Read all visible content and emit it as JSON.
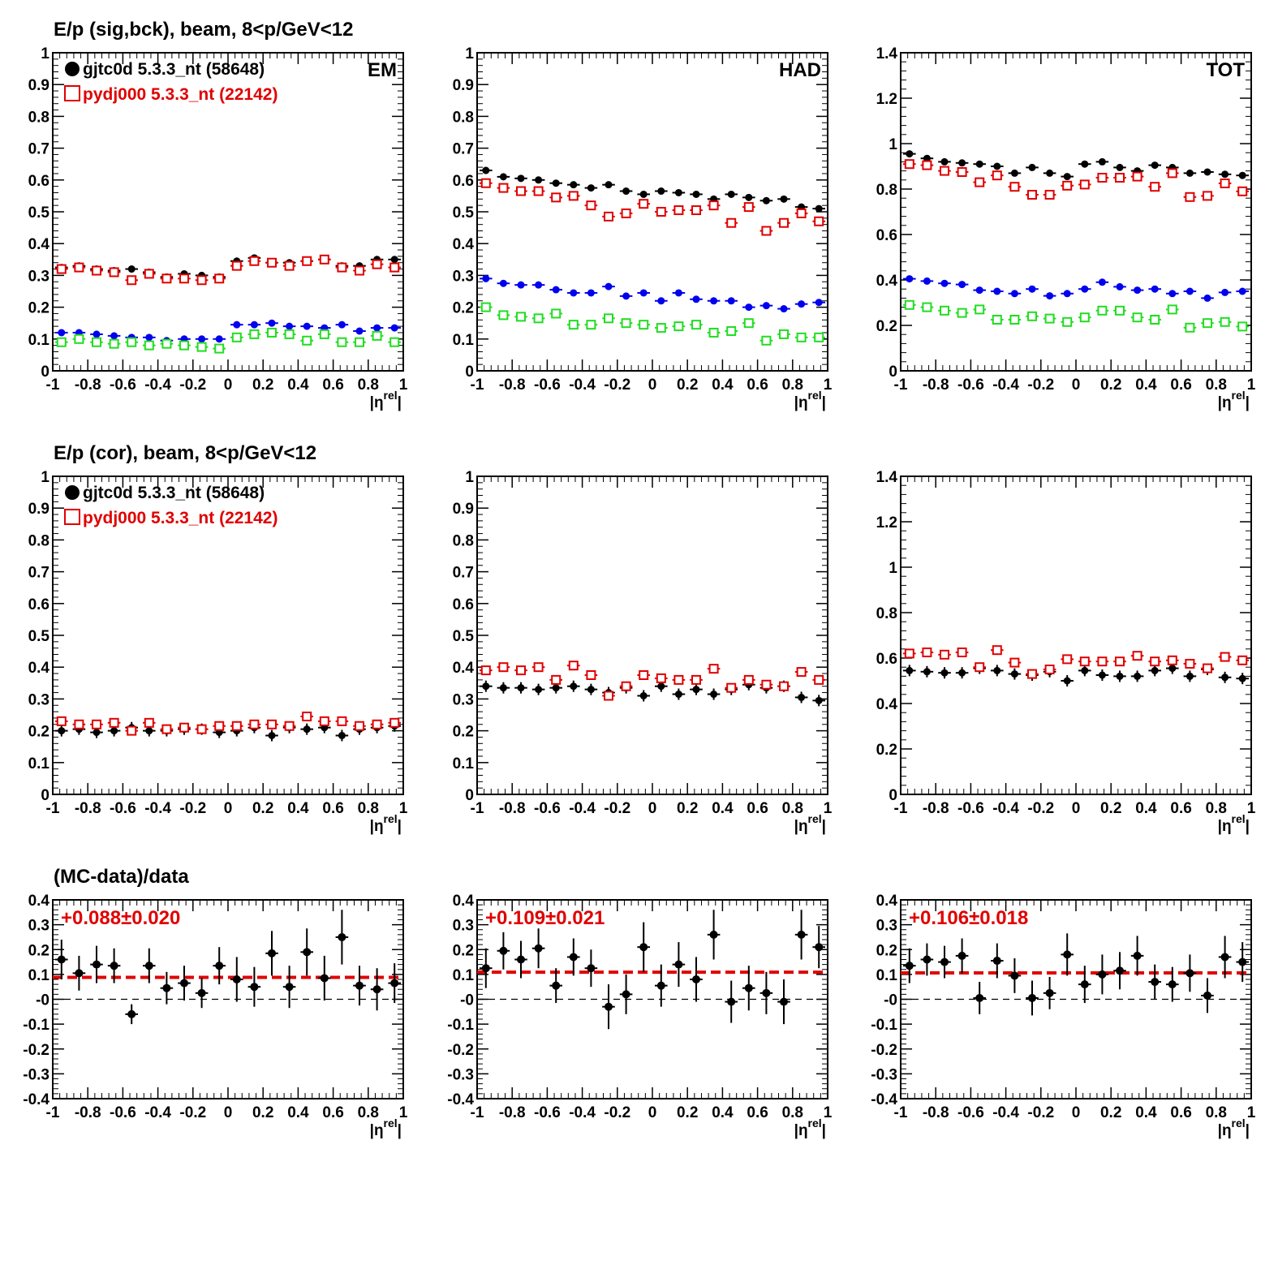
{
  "colors": {
    "data": "#000000",
    "mc": "#e00000",
    "blue": "#0000ee",
    "green": "#22dd22"
  },
  "row_titles": [
    "E/p (sig,bck), beam,  8<p/GeV<12",
    "E/p (cor), beam,  8<p/GeV<12",
    "(MC-data)/data"
  ],
  "legend": {
    "data": "gjtc0d 5.3.3_nt (58648)",
    "mc": "pydj000 5.3.3_nt (22142)"
  },
  "xlabel": {
    "main": "|η",
    "sup": "rel",
    "end": "|"
  },
  "chart_data": [
    {
      "type": "scatter",
      "tag": "EM",
      "ylim": [
        0,
        1
      ],
      "xlim": [
        -1,
        1
      ],
      "yticks": [
        "0",
        "0.1",
        "0.2",
        "0.3",
        "0.4",
        "0.5",
        "0.6",
        "0.7",
        "0.8",
        "0.9",
        "1"
      ],
      "xticks": [
        "-1",
        "-0.8",
        "-0.6",
        "-0.4",
        "-0.2",
        "0",
        "0.2",
        "0.4",
        "0.6",
        "0.8",
        "1"
      ],
      "x": [
        -0.95,
        -0.85,
        -0.75,
        -0.65,
        -0.55,
        -0.45,
        -0.35,
        -0.25,
        -0.15,
        -0.05,
        0.05,
        0.15,
        0.25,
        0.35,
        0.45,
        0.55,
        0.65,
        0.75,
        0.85,
        0.95
      ],
      "series": [
        {
          "name": "gjtc0d 5.3.3_nt (58648)",
          "style": "filled-black",
          "values": [
            0.325,
            0.33,
            0.32,
            0.315,
            0.32,
            0.31,
            0.295,
            0.305,
            0.3,
            0.295,
            0.345,
            0.355,
            0.34,
            0.34,
            0.345,
            0.35,
            0.33,
            0.33,
            0.35,
            0.35
          ]
        },
        {
          "name": "pydj000 5.3.3_nt (22142)",
          "style": "open-red",
          "values": [
            0.32,
            0.325,
            0.315,
            0.31,
            0.285,
            0.305,
            0.29,
            0.29,
            0.285,
            0.29,
            0.33,
            0.345,
            0.34,
            0.33,
            0.345,
            0.35,
            0.325,
            0.315,
            0.335,
            0.325
          ]
        },
        {
          "style": "filled-blue",
          "values": [
            0.12,
            0.12,
            0.115,
            0.11,
            0.105,
            0.105,
            0.095,
            0.1,
            0.1,
            0.1,
            0.145,
            0.145,
            0.15,
            0.14,
            0.14,
            0.135,
            0.145,
            0.125,
            0.135,
            0.135
          ]
        },
        {
          "style": "open-green",
          "values": [
            0.09,
            0.1,
            0.09,
            0.085,
            0.09,
            0.08,
            0.085,
            0.08,
            0.075,
            0.07,
            0.105,
            0.115,
            0.12,
            0.115,
            0.095,
            0.115,
            0.09,
            0.09,
            0.11,
            0.09
          ]
        }
      ]
    },
    {
      "type": "scatter",
      "tag": "HAD",
      "ylim": [
        0,
        1
      ],
      "xlim": [
        -1,
        1
      ],
      "yticks": [
        "0",
        "0.1",
        "0.2",
        "0.3",
        "0.4",
        "0.5",
        "0.6",
        "0.7",
        "0.8",
        "0.9",
        "1"
      ],
      "xticks": [
        "-1",
        "-0.8",
        "-0.6",
        "-0.4",
        "-0.2",
        "0",
        "0.2",
        "0.4",
        "0.6",
        "0.8",
        "1"
      ],
      "x": [
        -0.95,
        -0.85,
        -0.75,
        -0.65,
        -0.55,
        -0.45,
        -0.35,
        -0.25,
        -0.15,
        -0.05,
        0.05,
        0.15,
        0.25,
        0.35,
        0.45,
        0.55,
        0.65,
        0.75,
        0.85,
        0.95
      ],
      "series": [
        {
          "name": "gjtc0d 5.3.3_nt (58648)",
          "style": "filled-black",
          "values": [
            0.63,
            0.61,
            0.605,
            0.6,
            0.59,
            0.585,
            0.575,
            0.585,
            0.565,
            0.555,
            0.565,
            0.56,
            0.555,
            0.54,
            0.555,
            0.545,
            0.535,
            0.54,
            0.515,
            0.51
          ]
        },
        {
          "name": "pydj000 5.3.3_nt (22142)",
          "style": "open-red",
          "values": [
            0.59,
            0.575,
            0.565,
            0.565,
            0.545,
            0.55,
            0.52,
            0.485,
            0.495,
            0.525,
            0.5,
            0.505,
            0.505,
            0.52,
            0.465,
            0.515,
            0.44,
            0.465,
            0.495,
            0.47
          ]
        },
        {
          "style": "filled-blue",
          "values": [
            0.29,
            0.275,
            0.27,
            0.27,
            0.255,
            0.245,
            0.245,
            0.265,
            0.235,
            0.245,
            0.22,
            0.245,
            0.225,
            0.22,
            0.22,
            0.2,
            0.205,
            0.195,
            0.21,
            0.215
          ]
        },
        {
          "style": "open-green",
          "values": [
            0.2,
            0.175,
            0.17,
            0.165,
            0.18,
            0.145,
            0.145,
            0.165,
            0.15,
            0.145,
            0.135,
            0.14,
            0.145,
            0.12,
            0.125,
            0.15,
            0.095,
            0.115,
            0.105,
            0.105
          ]
        }
      ]
    },
    {
      "type": "scatter",
      "tag": "TOT",
      "ylim": [
        0,
        1.4
      ],
      "xlim": [
        -1,
        1
      ],
      "yticks": [
        "0",
        "0.2",
        "0.4",
        "0.6",
        "0.8",
        "1",
        "1.2",
        "1.4"
      ],
      "xticks": [
        "-1",
        "-0.8",
        "-0.6",
        "-0.4",
        "-0.2",
        "0",
        "0.2",
        "0.4",
        "0.6",
        "0.8",
        "1"
      ],
      "x": [
        -0.95,
        -0.85,
        -0.75,
        -0.65,
        -0.55,
        -0.45,
        -0.35,
        -0.25,
        -0.15,
        -0.05,
        0.05,
        0.15,
        0.25,
        0.35,
        0.45,
        0.55,
        0.65,
        0.75,
        0.85,
        0.95
      ],
      "series": [
        {
          "name": "gjtc0d 5.3.3_nt (58648)",
          "style": "filled-black",
          "values": [
            0.955,
            0.935,
            0.92,
            0.915,
            0.91,
            0.9,
            0.87,
            0.895,
            0.87,
            0.855,
            0.91,
            0.92,
            0.895,
            0.88,
            0.905,
            0.895,
            0.87,
            0.875,
            0.865,
            0.86
          ]
        },
        {
          "name": "pydj000 5.3.3_nt (22142)",
          "style": "open-red",
          "values": [
            0.91,
            0.905,
            0.88,
            0.875,
            0.83,
            0.86,
            0.81,
            0.775,
            0.775,
            0.815,
            0.82,
            0.85,
            0.85,
            0.855,
            0.81,
            0.87,
            0.765,
            0.77,
            0.825,
            0.79
          ]
        },
        {
          "style": "filled-blue",
          "values": [
            0.405,
            0.395,
            0.385,
            0.38,
            0.355,
            0.35,
            0.34,
            0.36,
            0.33,
            0.34,
            0.36,
            0.39,
            0.37,
            0.355,
            0.36,
            0.34,
            0.35,
            0.32,
            0.345,
            0.35
          ]
        },
        {
          "style": "open-green",
          "values": [
            0.29,
            0.28,
            0.265,
            0.255,
            0.27,
            0.225,
            0.225,
            0.24,
            0.23,
            0.215,
            0.235,
            0.265,
            0.265,
            0.235,
            0.225,
            0.27,
            0.19,
            0.21,
            0.215,
            0.195
          ]
        }
      ]
    },
    {
      "type": "scatter",
      "ylim": [
        0,
        1
      ],
      "xlim": [
        -1,
        1
      ],
      "yticks": [
        "0",
        "0.1",
        "0.2",
        "0.3",
        "0.4",
        "0.5",
        "0.6",
        "0.7",
        "0.8",
        "0.9",
        "1"
      ],
      "xticks": [
        "-1",
        "-0.8",
        "-0.6",
        "-0.4",
        "-0.2",
        "0",
        "0.2",
        "0.4",
        "0.6",
        "0.8",
        "1"
      ],
      "x": [
        -0.95,
        -0.85,
        -0.75,
        -0.65,
        -0.55,
        -0.45,
        -0.35,
        -0.25,
        -0.15,
        -0.05,
        0.05,
        0.15,
        0.25,
        0.35,
        0.45,
        0.55,
        0.65,
        0.75,
        0.85,
        0.95
      ],
      "series": [
        {
          "name": "gjtc0d 5.3.3_nt (58648)",
          "style": "filled-black-err",
          "values": [
            0.2,
            0.205,
            0.195,
            0.2,
            0.21,
            0.2,
            0.2,
            0.205,
            0.205,
            0.195,
            0.2,
            0.21,
            0.185,
            0.21,
            0.205,
            0.21,
            0.185,
            0.205,
            0.21,
            0.215
          ]
        },
        {
          "name": "pydj000 5.3.3_nt (22142)",
          "style": "open-red",
          "values": [
            0.23,
            0.22,
            0.22,
            0.225,
            0.2,
            0.225,
            0.205,
            0.21,
            0.205,
            0.215,
            0.215,
            0.22,
            0.22,
            0.215,
            0.245,
            0.23,
            0.23,
            0.215,
            0.22,
            0.225
          ]
        }
      ]
    },
    {
      "type": "scatter",
      "ylim": [
        0,
        1
      ],
      "xlim": [
        -1,
        1
      ],
      "yticks": [
        "0",
        "0.1",
        "0.2",
        "0.3",
        "0.4",
        "0.5",
        "0.6",
        "0.7",
        "0.8",
        "0.9",
        "1"
      ],
      "xticks": [
        "-1",
        "-0.8",
        "-0.6",
        "-0.4",
        "-0.2",
        "0",
        "0.2",
        "0.4",
        "0.6",
        "0.8",
        "1"
      ],
      "x": [
        -0.95,
        -0.85,
        -0.75,
        -0.65,
        -0.55,
        -0.45,
        -0.35,
        -0.25,
        -0.15,
        -0.05,
        0.05,
        0.15,
        0.25,
        0.35,
        0.45,
        0.55,
        0.65,
        0.75,
        0.85,
        0.95
      ],
      "series": [
        {
          "name": "gjtc0d 5.3.3_nt (58648)",
          "style": "filled-black-err",
          "values": [
            0.34,
            0.335,
            0.335,
            0.33,
            0.335,
            0.34,
            0.33,
            0.32,
            0.335,
            0.31,
            0.34,
            0.315,
            0.33,
            0.315,
            0.33,
            0.345,
            0.335,
            0.34,
            0.305,
            0.295
          ]
        },
        {
          "name": "pydj000 5.3.3_nt (22142)",
          "style": "open-red",
          "values": [
            0.39,
            0.4,
            0.39,
            0.4,
            0.36,
            0.405,
            0.375,
            0.31,
            0.34,
            0.375,
            0.365,
            0.36,
            0.36,
            0.395,
            0.335,
            0.36,
            0.345,
            0.34,
            0.385,
            0.36
          ]
        }
      ]
    },
    {
      "type": "scatter",
      "ylim": [
        0,
        1.4
      ],
      "xlim": [
        -1,
        1
      ],
      "yticks": [
        "0",
        "0.2",
        "0.4",
        "0.6",
        "0.8",
        "1",
        "1.2",
        "1.4"
      ],
      "xticks": [
        "-1",
        "-0.8",
        "-0.6",
        "-0.4",
        "-0.2",
        "0",
        "0.2",
        "0.4",
        "0.6",
        "0.8",
        "1"
      ],
      "x": [
        -0.95,
        -0.85,
        -0.75,
        -0.65,
        -0.55,
        -0.45,
        -0.35,
        -0.25,
        -0.15,
        -0.05,
        0.05,
        0.15,
        0.25,
        0.35,
        0.45,
        0.55,
        0.65,
        0.75,
        0.85,
        0.95
      ],
      "series": [
        {
          "name": "gjtc0d 5.3.3_nt (58648)",
          "style": "filled-black-err",
          "values": [
            0.545,
            0.54,
            0.535,
            0.535,
            0.555,
            0.545,
            0.53,
            0.525,
            0.54,
            0.5,
            0.545,
            0.525,
            0.52,
            0.52,
            0.545,
            0.555,
            0.52,
            0.55,
            0.515,
            0.51
          ]
        },
        {
          "name": "pydj000 5.3.3_nt (22142)",
          "style": "open-red",
          "values": [
            0.62,
            0.625,
            0.615,
            0.625,
            0.56,
            0.635,
            0.58,
            0.53,
            0.55,
            0.595,
            0.585,
            0.585,
            0.585,
            0.61,
            0.585,
            0.59,
            0.575,
            0.555,
            0.605,
            0.59
          ]
        }
      ]
    },
    {
      "type": "scatter",
      "ylim": [
        -0.4,
        0.4
      ],
      "xlim": [
        -1,
        1
      ],
      "text": "+0.088±0.020",
      "fit": 0.088,
      "yticks": [
        "-0.4",
        "-0.3",
        "-0.2",
        "-0.1",
        "-0",
        "0.1",
        "0.2",
        "0.3",
        "0.4"
      ],
      "xticks": [
        "-1",
        "-0.8",
        "-0.6",
        "-0.4",
        "-0.2",
        "0",
        "0.2",
        "0.4",
        "0.6",
        "0.8",
        "1"
      ],
      "x": [
        -0.95,
        -0.85,
        -0.75,
        -0.65,
        -0.55,
        -0.45,
        -0.35,
        -0.25,
        -0.15,
        -0.05,
        0.05,
        0.15,
        0.25,
        0.35,
        0.45,
        0.55,
        0.65,
        0.75,
        0.85,
        0.95
      ],
      "series": [
        {
          "style": "ratio",
          "values": [
            0.16,
            0.105,
            0.14,
            0.135,
            -0.06,
            0.135,
            0.045,
            0.065,
            0.025,
            0.135,
            0.08,
            0.05,
            0.185,
            0.05,
            0.19,
            0.085,
            0.25,
            0.055,
            0.04,
            0.065
          ],
          "errors": [
            0.08,
            0.07,
            0.075,
            0.07,
            0.04,
            0.07,
            0.065,
            0.07,
            0.06,
            0.075,
            0.09,
            0.08,
            0.09,
            0.085,
            0.095,
            0.09,
            0.11,
            0.08,
            0.085,
            0.08
          ]
        }
      ]
    },
    {
      "type": "scatter",
      "ylim": [
        -0.4,
        0.4
      ],
      "xlim": [
        -1,
        1
      ],
      "text": "+0.109±0.021",
      "fit": 0.109,
      "yticks": [
        "-0.4",
        "-0.3",
        "-0.2",
        "-0.1",
        "-0",
        "0.1",
        "0.2",
        "0.3",
        "0.4"
      ],
      "xticks": [
        "-1",
        "-0.8",
        "-0.6",
        "-0.4",
        "-0.2",
        "0",
        "0.2",
        "0.4",
        "0.6",
        "0.8",
        "1"
      ],
      "x": [
        -0.95,
        -0.85,
        -0.75,
        -0.65,
        -0.55,
        -0.45,
        -0.35,
        -0.25,
        -0.15,
        -0.05,
        0.05,
        0.15,
        0.25,
        0.35,
        0.45,
        0.55,
        0.65,
        0.75,
        0.85,
        0.95
      ],
      "series": [
        {
          "style": "ratio",
          "values": [
            0.125,
            0.195,
            0.16,
            0.205,
            0.055,
            0.17,
            0.125,
            -0.03,
            0.02,
            0.21,
            0.055,
            0.14,
            0.08,
            0.26,
            -0.01,
            0.045,
            0.025,
            -0.01,
            0.26,
            0.21
          ],
          "errors": [
            0.08,
            0.075,
            0.075,
            0.08,
            0.07,
            0.075,
            0.075,
            0.09,
            0.08,
            0.1,
            0.085,
            0.09,
            0.09,
            0.1,
            0.085,
            0.09,
            0.085,
            0.09,
            0.1,
            0.085
          ]
        }
      ]
    },
    {
      "type": "scatter",
      "ylim": [
        -0.4,
        0.4
      ],
      "xlim": [
        -1,
        1
      ],
      "text": "+0.106±0.018",
      "fit": 0.106,
      "yticks": [
        "-0.4",
        "-0.3",
        "-0.2",
        "-0.1",
        "-0",
        "0.1",
        "0.2",
        "0.3",
        "0.4"
      ],
      "xticks": [
        "-1",
        "-0.8",
        "-0.6",
        "-0.4",
        "-0.2",
        "0",
        "0.2",
        "0.4",
        "0.6",
        "0.8",
        "1"
      ],
      "x": [
        -0.95,
        -0.85,
        -0.75,
        -0.65,
        -0.55,
        -0.45,
        -0.35,
        -0.25,
        -0.15,
        -0.05,
        0.05,
        0.15,
        0.25,
        0.35,
        0.45,
        0.55,
        0.65,
        0.75,
        0.85,
        0.95
      ],
      "series": [
        {
          "style": "ratio",
          "values": [
            0.135,
            0.16,
            0.15,
            0.175,
            0.005,
            0.155,
            0.095,
            0.005,
            0.025,
            0.18,
            0.06,
            0.1,
            0.115,
            0.175,
            0.07,
            0.06,
            0.105,
            0.015,
            0.17,
            0.15
          ],
          "errors": [
            0.07,
            0.065,
            0.065,
            0.07,
            0.065,
            0.07,
            0.07,
            0.07,
            0.065,
            0.085,
            0.075,
            0.08,
            0.075,
            0.08,
            0.07,
            0.07,
            0.075,
            0.07,
            0.085,
            0.08
          ]
        }
      ]
    }
  ]
}
